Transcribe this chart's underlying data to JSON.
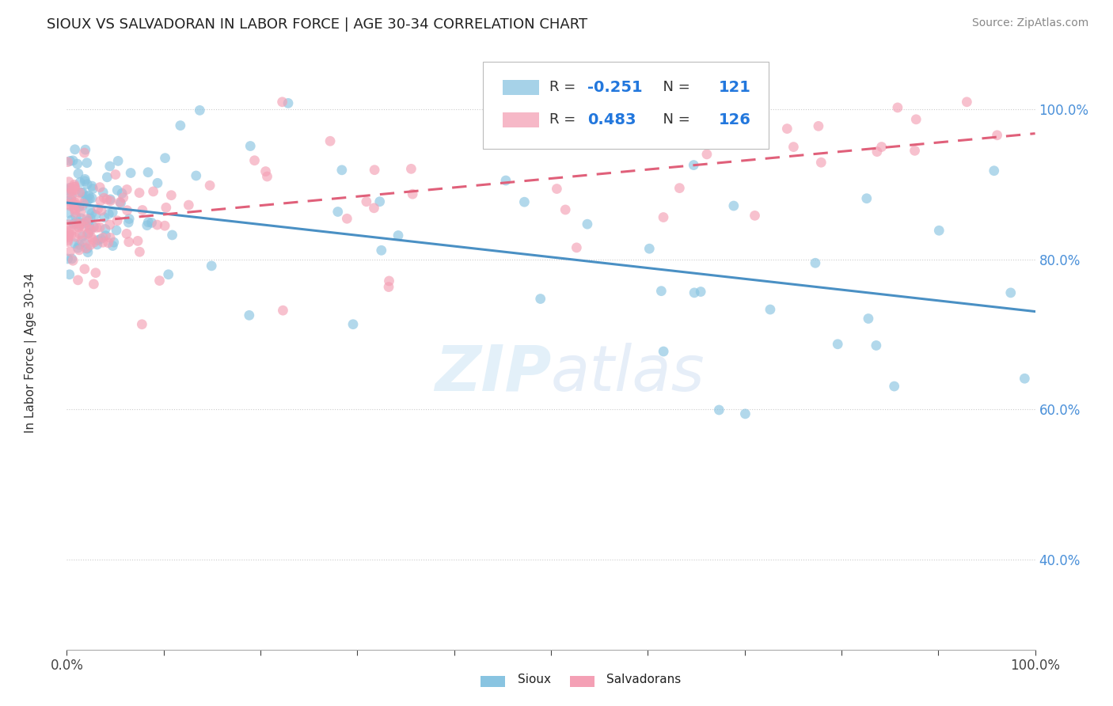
{
  "title": "SIOUX VS SALVADORAN IN LABOR FORCE | AGE 30-34 CORRELATION CHART",
  "xlabel": "",
  "ylabel": "In Labor Force | Age 30-34",
  "source_text": "Source: ZipAtlas.com",
  "legend_labels": [
    "Sioux",
    "Salvadorans"
  ],
  "sioux_R": -0.251,
  "sioux_N": 121,
  "salvadoran_R": 0.483,
  "salvadoran_N": 126,
  "sioux_color": "#89c4e1",
  "salvadoran_color": "#f4a0b5",
  "sioux_line_color": "#4a90c4",
  "salvadoran_line_color": "#e0607a",
  "background_color": "#ffffff",
  "watermark_text": "ZIPAtlas",
  "xlim": [
    0.0,
    1.0
  ],
  "ylim": [
    0.28,
    1.08
  ],
  "sioux_trend_start_y": 0.855,
  "sioux_trend_end_y": 0.722,
  "salvadoran_trend_start_y": 0.825,
  "salvadoran_trend_end_y": 1.005
}
